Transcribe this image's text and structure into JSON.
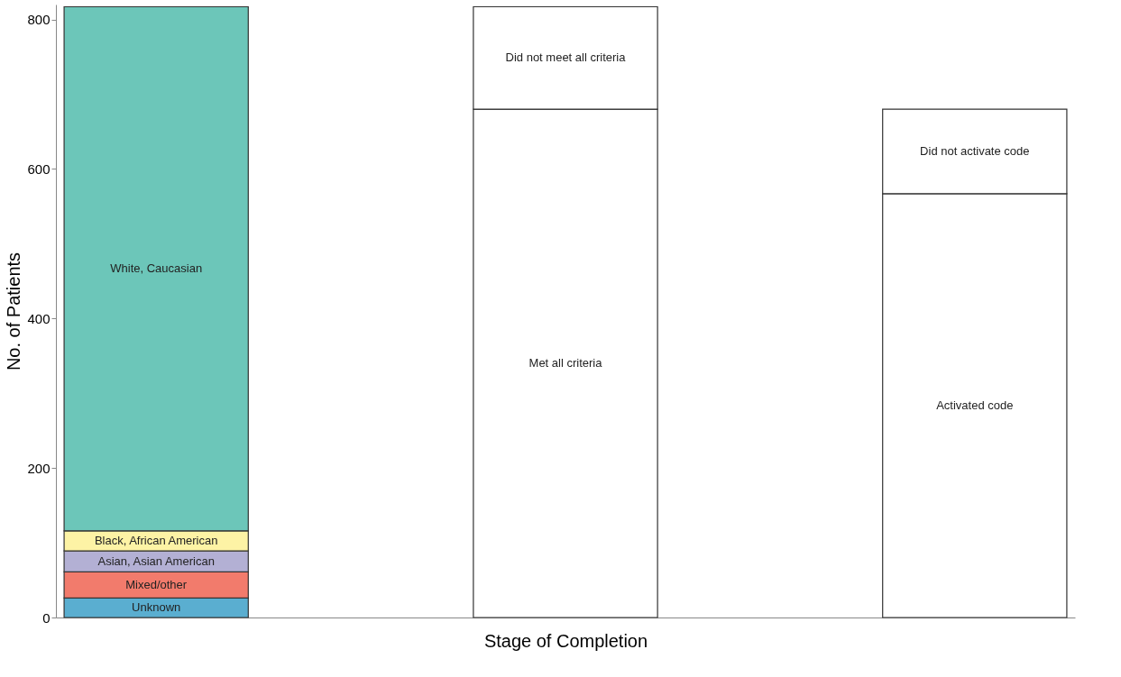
{
  "chart_data": {
    "type": "bar",
    "stacked": true,
    "xlabel": "Stage of Completion",
    "ylabel": "No. of Patients",
    "categories": [
      null,
      null,
      null
    ],
    "series": [
      {
        "name": "Unknown",
        "color": "#5aaed0",
        "values": [
          26,
          null,
          null
        ]
      },
      {
        "name": "Mixed/other",
        "color": "#f27b6c",
        "values": [
          35,
          null,
          null
        ]
      },
      {
        "name": "Asian, Asian American",
        "color": "#b3b0d4",
        "values": [
          28,
          null,
          null
        ]
      },
      {
        "name": "Black, African American",
        "color": "#fdf3a5",
        "values": [
          27,
          null,
          null
        ]
      },
      {
        "name": "White, Caucasian",
        "color": "#6cc6b9",
        "values": [
          701,
          null,
          null
        ]
      },
      {
        "name": "Met all criteria",
        "color": "#ffffff",
        "values": [
          null,
          680,
          null
        ]
      },
      {
        "name": "Did not meet all criteria",
        "color": "#ffffff",
        "values": [
          null,
          137,
          null
        ]
      },
      {
        "name": "Activated code",
        "color": "#ffffff",
        "values": [
          null,
          null,
          567
        ]
      },
      {
        "name": "Did not activate code",
        "color": "#ffffff",
        "values": [
          null,
          null,
          113
        ]
      }
    ],
    "ylim": [
      0,
      820
    ],
    "yticks": [
      0,
      200,
      400,
      600,
      800
    ],
    "grid": false,
    "legend": false
  }
}
